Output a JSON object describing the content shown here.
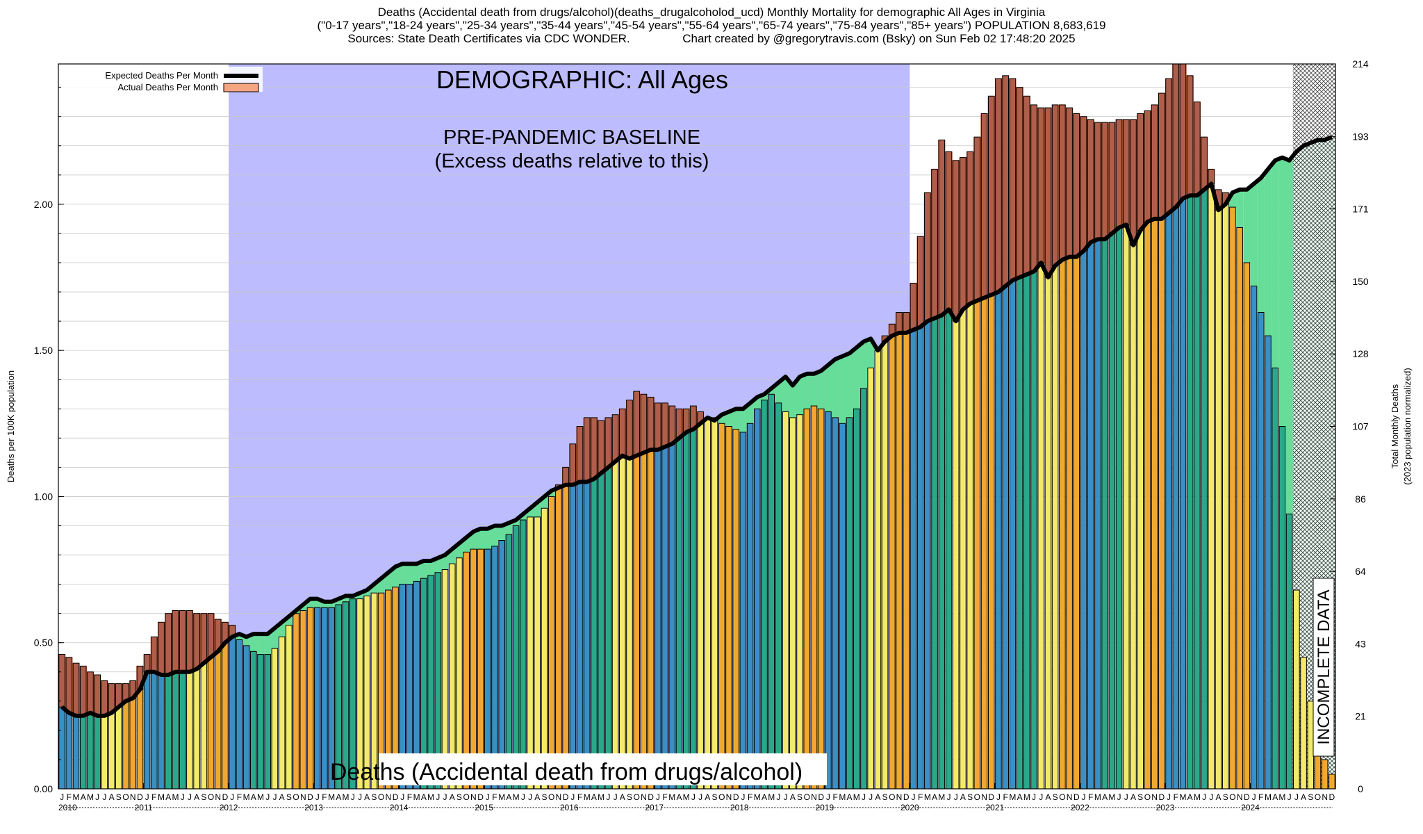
{
  "header": {
    "line1": "Deaths (Accidental death from drugs/alcohol)(deaths_drugalcoholod_ucd) Monthly Mortality for demographic All Ages in Virginia",
    "line2": "(\"0-17 years\",\"18-24 years\",\"25-34 years\",\"35-44 years\",\"45-54 years\",\"55-64 years\",\"65-74 years\",\"75-84 years\",\"85+ years\") POPULATION 8,683,619",
    "line3": "Sources: State Death Certificates via CDC WONDER.                Chart created by @gregorytravis.com (Bsky) on Sun Feb 02 17:48:20 2025"
  },
  "chart_data": {
    "type": "bar",
    "title": "DEMOGRAPHIC: All Ages",
    "baseline_label_1": "PRE-PANDEMIC BASELINE",
    "baseline_label_2": "(Excess deaths relative to this)",
    "bottom_label": "Deaths (Accidental death from drugs/alcohol)",
    "incomplete_label": "INCOMPLETE DATA",
    "ylabel": "Deaths per 100K population",
    "y2label_1": "Total Monthly Deaths",
    "y2label_2": "(2023 population normalized)",
    "ylim": [
      0,
      2.48
    ],
    "y_ticks": [
      "0.00",
      "0.50",
      "1.00",
      "1.50",
      "2.00"
    ],
    "y_tick_values": [
      0,
      0.5,
      1.0,
      1.5,
      2.0
    ],
    "y2_ticks": [
      "0",
      "21",
      "43",
      "64",
      "86",
      "107",
      "128",
      "150",
      "171",
      "193",
      "214"
    ],
    "month_letters": [
      "J",
      "F",
      "M",
      "A",
      "M",
      "J",
      "J",
      "A",
      "S",
      "O",
      "N",
      "D"
    ],
    "years": [
      "2010",
      "2011",
      "2012",
      "2013",
      "2014",
      "2015",
      "2016",
      "2017",
      "2018",
      "2019",
      "2020",
      "2021",
      "2022",
      "2023",
      "2024"
    ],
    "baseline_period": [
      "2012-01",
      "2020-01"
    ],
    "incomplete_period": [
      "2024-07",
      "2024-12"
    ],
    "legend": [
      {
        "name": "Expected Deaths Per Month",
        "color": "#000000"
      },
      {
        "name": "Actual Deaths Per Month",
        "color": "#f4a582"
      }
    ],
    "colors": {
      "excess": "#f26522",
      "deficit": "#66dd99",
      "baseline_band": "#bcbcff",
      "hatch": "#bbbbbb",
      "season_winter": "#3a8fc4",
      "season_spring": "#2aa88a",
      "season_summer": "#f3ea6a",
      "season_fall": "#f0a830",
      "excess_overlay": "#7a5a70"
    },
    "series": [
      {
        "name": "Actual Deaths Per Month",
        "values": [
          0.46,
          0.45,
          0.43,
          0.42,
          0.4,
          0.39,
          0.37,
          0.36,
          0.36,
          0.36,
          0.37,
          0.42,
          0.46,
          0.52,
          0.57,
          0.6,
          0.61,
          0.61,
          0.61,
          0.6,
          0.6,
          0.6,
          0.58,
          0.57,
          0.56,
          0.51,
          0.49,
          0.47,
          0.46,
          0.46,
          0.48,
          0.52,
          0.56,
          0.6,
          0.61,
          0.62,
          0.62,
          0.62,
          0.62,
          0.63,
          0.64,
          0.65,
          0.65,
          0.66,
          0.67,
          0.67,
          0.68,
          0.69,
          0.7,
          0.7,
          0.71,
          0.72,
          0.73,
          0.74,
          0.75,
          0.77,
          0.79,
          0.81,
          0.82,
          0.82,
          0.82,
          0.83,
          0.85,
          0.87,
          0.9,
          0.92,
          0.93,
          0.93,
          0.96,
          1.0,
          1.04,
          1.1,
          1.18,
          1.24,
          1.27,
          1.27,
          1.26,
          1.27,
          1.28,
          1.3,
          1.33,
          1.36,
          1.35,
          1.34,
          1.32,
          1.32,
          1.31,
          1.3,
          1.3,
          1.31,
          1.29,
          1.27,
          1.27,
          1.25,
          1.24,
          1.23,
          1.22,
          1.25,
          1.3,
          1.33,
          1.35,
          1.32,
          1.29,
          1.27,
          1.28,
          1.3,
          1.31,
          1.3,
          1.29,
          1.27,
          1.25,
          1.27,
          1.3,
          1.37,
          1.44,
          1.5,
          1.55,
          1.59,
          1.63,
          1.63,
          1.73,
          1.89,
          2.04,
          2.12,
          2.22,
          2.18,
          2.15,
          2.16,
          2.18,
          2.23,
          2.31,
          2.37,
          2.43,
          2.44,
          2.43,
          2.4,
          2.37,
          2.34,
          2.33,
          2.33,
          2.34,
          2.34,
          2.33,
          2.31,
          2.3,
          2.29,
          2.28,
          2.28,
          2.28,
          2.29,
          2.29,
          2.29,
          2.31,
          2.32,
          2.34,
          2.38,
          2.43,
          2.48,
          2.48,
          2.44,
          2.35,
          2.23,
          2.12,
          2.05,
          2.04,
          1.99,
          1.92,
          1.8,
          1.72,
          1.63,
          1.55,
          1.44,
          1.24,
          0.94,
          0.68,
          0.45,
          0.3,
          0.18,
          0.1,
          0.05
        ]
      },
      {
        "name": "Expected Deaths Per Month",
        "values": [
          0.28,
          0.26,
          0.25,
          0.25,
          0.26,
          0.25,
          0.25,
          0.26,
          0.28,
          0.3,
          0.31,
          0.34,
          0.4,
          0.4,
          0.39,
          0.39,
          0.4,
          0.4,
          0.4,
          0.41,
          0.43,
          0.45,
          0.47,
          0.5,
          0.52,
          0.53,
          0.52,
          0.53,
          0.53,
          0.53,
          0.55,
          0.57,
          0.59,
          0.61,
          0.63,
          0.65,
          0.65,
          0.64,
          0.64,
          0.65,
          0.66,
          0.66,
          0.67,
          0.68,
          0.7,
          0.72,
          0.74,
          0.76,
          0.77,
          0.77,
          0.77,
          0.78,
          0.78,
          0.79,
          0.8,
          0.82,
          0.84,
          0.86,
          0.88,
          0.89,
          0.89,
          0.9,
          0.9,
          0.91,
          0.92,
          0.94,
          0.96,
          0.98,
          1.0,
          1.02,
          1.03,
          1.04,
          1.04,
          1.05,
          1.05,
          1.06,
          1.08,
          1.1,
          1.12,
          1.14,
          1.13,
          1.14,
          1.15,
          1.16,
          1.16,
          1.17,
          1.18,
          1.2,
          1.22,
          1.23,
          1.25,
          1.27,
          1.26,
          1.28,
          1.29,
          1.3,
          1.3,
          1.32,
          1.34,
          1.35,
          1.37,
          1.39,
          1.41,
          1.38,
          1.41,
          1.42,
          1.42,
          1.43,
          1.45,
          1.47,
          1.48,
          1.49,
          1.51,
          1.53,
          1.54,
          1.5,
          1.53,
          1.55,
          1.56,
          1.56,
          1.57,
          1.58,
          1.6,
          1.61,
          1.62,
          1.64,
          1.6,
          1.64,
          1.66,
          1.67,
          1.68,
          1.69,
          1.7,
          1.72,
          1.74,
          1.75,
          1.76,
          1.77,
          1.8,
          1.75,
          1.79,
          1.81,
          1.82,
          1.82,
          1.84,
          1.87,
          1.88,
          1.88,
          1.9,
          1.92,
          1.93,
          1.86,
          1.91,
          1.94,
          1.95,
          1.95,
          1.97,
          1.99,
          2.02,
          2.03,
          2.03,
          2.05,
          2.07,
          1.98,
          2.0,
          2.04,
          2.05,
          2.05,
          2.07,
          2.09,
          2.12,
          2.15,
          2.16,
          2.15,
          2.18,
          2.2,
          2.21,
          2.22,
          2.22,
          2.23
        ]
      }
    ],
    "grid": true,
    "legend_position": "top-left"
  }
}
